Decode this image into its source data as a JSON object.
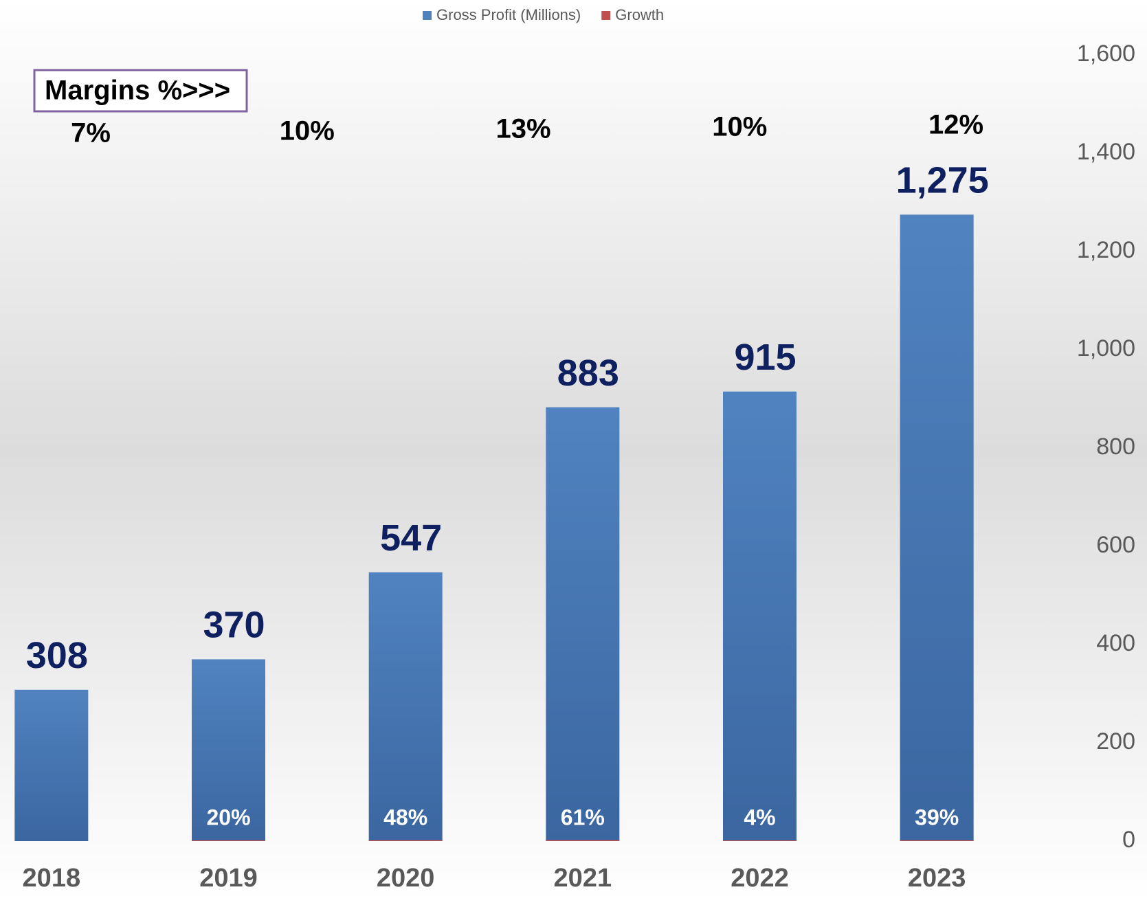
{
  "chart_data": {
    "type": "bar",
    "categories": [
      "2018",
      "2019",
      "2020",
      "2021",
      "2022",
      "2023"
    ],
    "series": [
      {
        "name": "Gross Profit (Millions)",
        "color": "#4f81bd",
        "values": [
          308,
          370,
          547,
          883,
          915,
          1275
        ]
      },
      {
        "name": "Growth",
        "color": "#c0504d",
        "values": [
          null,
          0.2,
          0.48,
          0.61,
          0.04,
          0.39
        ],
        "value_labels": [
          null,
          "20%",
          "48%",
          "61%",
          "4%",
          "39%"
        ]
      }
    ],
    "ylim": [
      0,
      1600
    ],
    "yticks": [
      0,
      200,
      400,
      600,
      800,
      {
        "value": 1000,
        "label": "1,000"
      },
      {
        "value": 1200,
        "label": "1,200"
      },
      {
        "value": 1400,
        "label": "1,400"
      },
      {
        "value": 1600,
        "label": "1,600"
      }
    ],
    "value_labels": [
      "308",
      "370",
      "547",
      "883",
      "915",
      "1,275"
    ],
    "annotation": {
      "label": "Margins %>>>",
      "values": [
        7,
        10,
        13,
        10,
        12
      ],
      "value_labels": [
        "7%",
        "10%",
        "13%",
        "10%",
        "12%"
      ]
    },
    "legend": "top"
  }
}
